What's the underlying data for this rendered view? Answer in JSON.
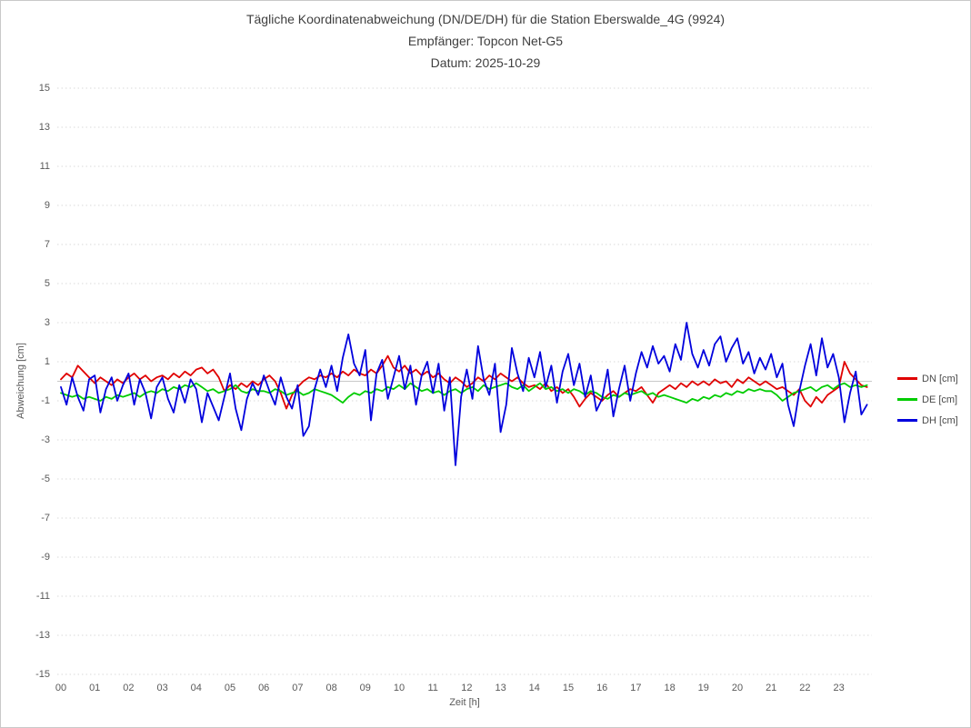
{
  "header": {
    "line1": "Tägliche Koordinatenabweichung (DN/DE/DH) für die Station Eberswalde_4G (9924)",
    "line2": "Empfänger: Topcon Net-G5",
    "line3": "Datum: 2025-10-29"
  },
  "chart_data": {
    "type": "line",
    "title": "Tägliche Koordinatenabweichung (DN/DE/DH) für die Station Eberswalde_4G (9924)",
    "title_lines": [
      "Tägliche Koordinatenabweichung (DN/DE/DH) für die Station Eberswalde_4G (9924)",
      "Empfänger: Topcon Net-G5",
      "Datum: 2025-10-29"
    ],
    "xlabel": "Zeit [h]",
    "ylabel": "Abweichung [cm]",
    "xlim": [
      0,
      24
    ],
    "ylim": [
      -15,
      15
    ],
    "xticks": [
      "00",
      "01",
      "02",
      "03",
      "04",
      "05",
      "06",
      "07",
      "08",
      "09",
      "10",
      "11",
      "12",
      "13",
      "14",
      "15",
      "16",
      "17",
      "18",
      "19",
      "20",
      "21",
      "22",
      "23"
    ],
    "yticks": [
      15,
      13,
      11,
      9,
      7,
      5,
      3,
      1,
      -1,
      -3,
      -5,
      -7,
      -9,
      -11,
      -13,
      -15
    ],
    "grid": {
      "horizontal": "dotted at odd values",
      "zero_line": "solid",
      "vertical": "none"
    },
    "legend_position": "right",
    "sample_interval_minutes": 10,
    "colors": {
      "grid": "#d9d9d9",
      "zero_line": "#c8c8c8",
      "title_text": "#3f3f3f",
      "tick_text": "#595959"
    },
    "series": [
      {
        "name": "DN [cm]",
        "color": "#e00000",
        "values": [
          0.1,
          0.4,
          0.2,
          0.8,
          0.5,
          0.2,
          -0.1,
          0.2,
          0.0,
          -0.2,
          0.1,
          -0.1,
          0.2,
          0.4,
          0.1,
          0.3,
          0.0,
          0.2,
          0.3,
          0.1,
          0.4,
          0.2,
          0.5,
          0.3,
          0.6,
          0.7,
          0.4,
          0.6,
          0.2,
          -0.5,
          -0.2,
          -0.4,
          -0.1,
          -0.3,
          0.0,
          -0.2,
          0.1,
          0.3,
          0.0,
          -0.6,
          -1.4,
          -0.7,
          -0.3,
          0.0,
          0.2,
          0.1,
          0.3,
          0.2,
          0.4,
          0.2,
          0.5,
          0.3,
          0.6,
          0.4,
          0.3,
          0.6,
          0.4,
          0.8,
          1.3,
          0.7,
          0.5,
          0.8,
          0.4,
          0.6,
          0.3,
          0.5,
          0.2,
          0.4,
          0.1,
          -0.1,
          0.2,
          0.0,
          -0.3,
          -0.1,
          0.2,
          0.0,
          0.3,
          0.1,
          0.4,
          0.2,
          0.0,
          0.2,
          -0.1,
          -0.3,
          -0.2,
          -0.4,
          -0.1,
          -0.5,
          -0.3,
          -0.6,
          -0.4,
          -0.8,
          -1.3,
          -0.9,
          -0.6,
          -0.8,
          -1.0,
          -0.7,
          -0.5,
          -0.8,
          -0.6,
          -0.4,
          -0.5,
          -0.3,
          -0.7,
          -1.1,
          -0.6,
          -0.4,
          -0.2,
          -0.4,
          -0.1,
          -0.3,
          0.0,
          -0.2,
          0.0,
          -0.2,
          0.1,
          -0.1,
          0.0,
          -0.3,
          0.1,
          -0.1,
          0.2,
          0.0,
          -0.2,
          0.0,
          -0.2,
          -0.4,
          -0.3,
          -0.5,
          -0.7,
          -0.4,
          -1.0,
          -1.3,
          -0.8,
          -1.1,
          -0.7,
          -0.5,
          -0.3,
          1.0,
          0.4,
          0.1,
          -0.2,
          -0.3
        ]
      },
      {
        "name": "DE [cm]",
        "color": "#00cc00",
        "values": [
          -0.6,
          -0.7,
          -0.8,
          -0.7,
          -0.9,
          -0.8,
          -0.9,
          -1.0,
          -0.8,
          -0.9,
          -0.7,
          -0.8,
          -0.7,
          -0.6,
          -0.8,
          -0.6,
          -0.5,
          -0.6,
          -0.4,
          -0.5,
          -0.3,
          -0.4,
          -0.2,
          -0.3,
          -0.1,
          -0.3,
          -0.5,
          -0.4,
          -0.6,
          -0.5,
          -0.4,
          -0.2,
          -0.5,
          -0.6,
          -0.4,
          -0.5,
          -0.5,
          -0.6,
          -0.4,
          -0.5,
          -0.7,
          -0.6,
          -0.5,
          -0.7,
          -0.6,
          -0.4,
          -0.5,
          -0.6,
          -0.7,
          -0.9,
          -1.1,
          -0.8,
          -0.6,
          -0.7,
          -0.5,
          -0.6,
          -0.4,
          -0.5,
          -0.3,
          -0.4,
          -0.2,
          -0.4,
          -0.1,
          -0.3,
          -0.5,
          -0.4,
          -0.6,
          -0.5,
          -0.7,
          -0.5,
          -0.4,
          -0.6,
          -0.4,
          -0.3,
          -0.5,
          -0.2,
          -0.4,
          -0.3,
          -0.2,
          -0.1,
          -0.3,
          -0.4,
          -0.2,
          -0.5,
          -0.3,
          -0.1,
          -0.4,
          -0.3,
          -0.5,
          -0.4,
          -0.6,
          -0.4,
          -0.5,
          -0.7,
          -0.5,
          -0.6,
          -0.8,
          -0.9,
          -0.7,
          -0.8,
          -0.6,
          -0.7,
          -0.6,
          -0.5,
          -0.7,
          -0.6,
          -0.8,
          -0.7,
          -0.8,
          -0.9,
          -1.0,
          -1.1,
          -0.9,
          -1.0,
          -0.8,
          -0.9,
          -0.7,
          -0.8,
          -0.6,
          -0.7,
          -0.5,
          -0.6,
          -0.4,
          -0.5,
          -0.4,
          -0.5,
          -0.5,
          -0.7,
          -1.0,
          -0.8,
          -0.6,
          -0.5,
          -0.4,
          -0.3,
          -0.5,
          -0.3,
          -0.2,
          -0.4,
          -0.2,
          -0.1,
          -0.3,
          -0.2,
          -0.3,
          -0.2
        ]
      },
      {
        "name": "DH [cm]",
        "color": "#0000dd",
        "values": [
          -0.3,
          -1.2,
          0.2,
          -0.8,
          -1.5,
          0.1,
          0.3,
          -1.6,
          -0.4,
          0.2,
          -1.0,
          -0.2,
          0.4,
          -1.2,
          0.1,
          -0.6,
          -1.9,
          -0.3,
          0.2,
          -0.9,
          -1.6,
          -0.2,
          -1.1,
          0.1,
          -0.4,
          -2.1,
          -0.6,
          -1.3,
          -2.0,
          -0.8,
          0.4,
          -1.4,
          -2.5,
          -0.9,
          -0.1,
          -0.7,
          0.3,
          -0.5,
          -1.2,
          0.2,
          -0.8,
          -1.4,
          -0.2,
          -2.8,
          -2.3,
          -0.4,
          0.6,
          -0.3,
          0.8,
          -0.5,
          1.2,
          2.4,
          0.9,
          0.3,
          1.6,
          -2.0,
          0.4,
          1.1,
          -0.9,
          0.2,
          1.3,
          -0.4,
          0.8,
          -1.2,
          0.3,
          1.0,
          -0.6,
          0.9,
          -1.5,
          0.2,
          -4.3,
          -0.8,
          0.6,
          -0.9,
          1.8,
          0.1,
          -0.7,
          0.9,
          -2.6,
          -1.2,
          1.7,
          0.4,
          -0.5,
          1.2,
          0.2,
          1.5,
          -0.3,
          0.8,
          -1.1,
          0.5,
          1.4,
          -0.2,
          0.9,
          -0.8,
          0.3,
          -1.5,
          -0.9,
          0.6,
          -1.8,
          -0.4,
          0.8,
          -1.0,
          0.4,
          1.5,
          0.7,
          1.8,
          0.9,
          1.3,
          0.5,
          1.9,
          1.1,
          3.0,
          1.4,
          0.7,
          1.6,
          0.8,
          1.9,
          2.3,
          1.0,
          1.7,
          2.2,
          0.9,
          1.5,
          0.4,
          1.2,
          0.6,
          1.4,
          0.2,
          0.9,
          -1.2,
          -2.3,
          -0.5,
          0.8,
          1.9,
          0.3,
          2.2,
          0.7,
          1.4,
          0.2,
          -2.1,
          -0.6,
          0.5,
          -1.7,
          -1.2
        ]
      }
    ]
  }
}
